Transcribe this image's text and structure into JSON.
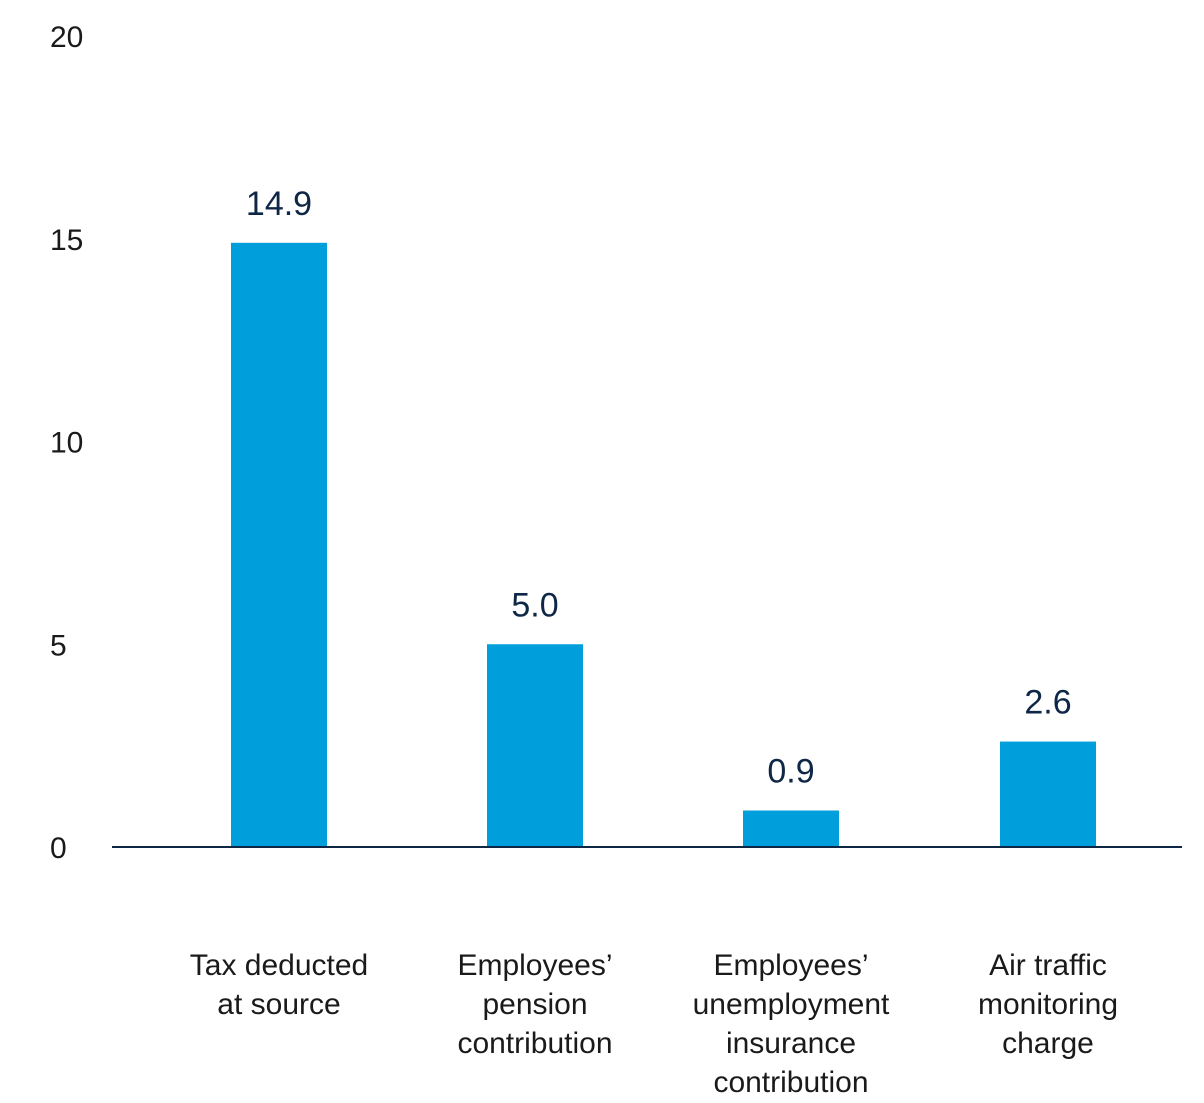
{
  "chart_data": {
    "type": "bar",
    "title": "",
    "xlabel": "",
    "ylabel": "",
    "ylim": [
      0,
      20
    ],
    "yticks": [
      0,
      5,
      10,
      15,
      20
    ],
    "grid": false,
    "categories": [
      [
        "Tax deducted",
        "at source"
      ],
      [
        "Employees’",
        "pension",
        "contribution"
      ],
      [
        "Employees’",
        "unemployment",
        "insurance",
        "contribution"
      ],
      [
        "Air traffic",
        "monitoring",
        "charge"
      ]
    ],
    "values": [
      14.9,
      5.0,
      0.9,
      2.6
    ],
    "data_labels": [
      "14.9",
      "5.0",
      "0.9",
      "2.6"
    ],
    "colors": {
      "bar": "#009fdb",
      "axis": "#0f2747",
      "data_label": "#0f2747"
    }
  }
}
